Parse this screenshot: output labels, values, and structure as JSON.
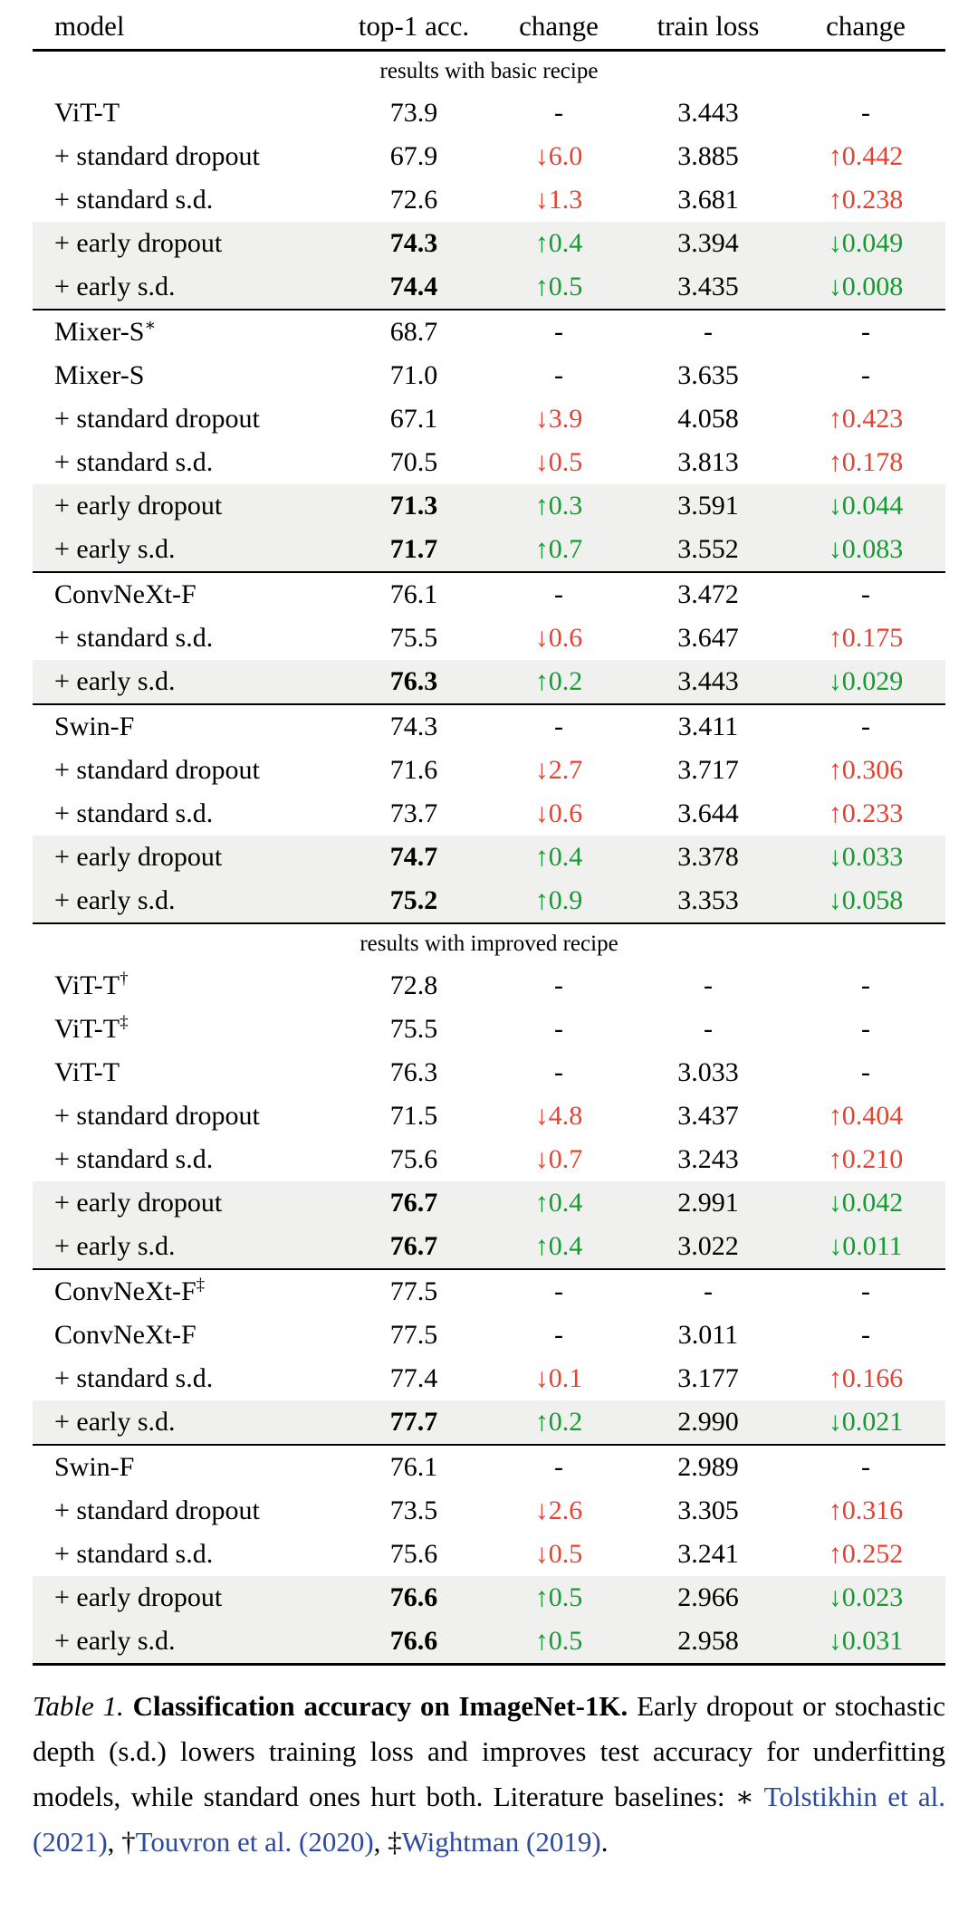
{
  "colors": {
    "negative": "#e8412f",
    "positive": "#109e2f",
    "citation_link": "#2c4aa0",
    "row_highlight": "#f0f0ee",
    "rule": "#000000"
  },
  "table": {
    "columns": [
      "model",
      "top-1 acc.",
      "change",
      "train loss",
      "change"
    ],
    "sections": [
      {
        "label": "results with basic recipe",
        "groups": [
          [
            {
              "model": "ViT-T",
              "sup": "",
              "acc": "73.9",
              "bold": false,
              "dacc": "-",
              "dacc_tone": "",
              "loss": "3.443",
              "dloss": "-",
              "dloss_tone": "",
              "shade": false
            },
            {
              "model": "+ standard dropout",
              "sup": "",
              "acc": "67.9",
              "bold": false,
              "dacc": "↓6.0",
              "dacc_tone": "bad",
              "loss": "3.885",
              "dloss": "↑0.442",
              "dloss_tone": "bad",
              "shade": false
            },
            {
              "model": "+ standard s.d.",
              "sup": "",
              "acc": "72.6",
              "bold": false,
              "dacc": "↓1.3",
              "dacc_tone": "bad",
              "loss": "3.681",
              "dloss": "↑0.238",
              "dloss_tone": "bad",
              "shade": false
            },
            {
              "model": "+ early dropout",
              "sup": "",
              "acc": "74.3",
              "bold": true,
              "dacc": "↑0.4",
              "dacc_tone": "good",
              "loss": "3.394",
              "dloss": "↓0.049",
              "dloss_tone": "good",
              "shade": true
            },
            {
              "model": "+ early s.d.",
              "sup": "",
              "acc": "74.4",
              "bold": true,
              "dacc": "↑0.5",
              "dacc_tone": "good",
              "loss": "3.435",
              "dloss": "↓0.008",
              "dloss_tone": "good",
              "shade": true
            }
          ],
          [
            {
              "model": "Mixer-S",
              "sup": "∗",
              "acc": "68.7",
              "bold": false,
              "dacc": "-",
              "dacc_tone": "",
              "loss": "-",
              "dloss": "-",
              "dloss_tone": "",
              "shade": false
            },
            {
              "model": "Mixer-S",
              "sup": "",
              "acc": "71.0",
              "bold": false,
              "dacc": "-",
              "dacc_tone": "",
              "loss": "3.635",
              "dloss": "-",
              "dloss_tone": "",
              "shade": false
            },
            {
              "model": "+ standard dropout",
              "sup": "",
              "acc": "67.1",
              "bold": false,
              "dacc": "↓3.9",
              "dacc_tone": "bad",
              "loss": "4.058",
              "dloss": "↑0.423",
              "dloss_tone": "bad",
              "shade": false
            },
            {
              "model": "+ standard s.d.",
              "sup": "",
              "acc": "70.5",
              "bold": false,
              "dacc": "↓0.5",
              "dacc_tone": "bad",
              "loss": "3.813",
              "dloss": "↑0.178",
              "dloss_tone": "bad",
              "shade": false
            },
            {
              "model": "+ early dropout",
              "sup": "",
              "acc": "71.3",
              "bold": true,
              "dacc": "↑0.3",
              "dacc_tone": "good",
              "loss": "3.591",
              "dloss": "↓0.044",
              "dloss_tone": "good",
              "shade": true
            },
            {
              "model": "+ early s.d.",
              "sup": "",
              "acc": "71.7",
              "bold": true,
              "dacc": "↑0.7",
              "dacc_tone": "good",
              "loss": "3.552",
              "dloss": "↓0.083",
              "dloss_tone": "good",
              "shade": true
            }
          ],
          [
            {
              "model": "ConvNeXt-F",
              "sup": "",
              "acc": "76.1",
              "bold": false,
              "dacc": "-",
              "dacc_tone": "",
              "loss": "3.472",
              "dloss": "-",
              "dloss_tone": "",
              "shade": false
            },
            {
              "model": "+ standard s.d.",
              "sup": "",
              "acc": "75.5",
              "bold": false,
              "dacc": "↓0.6",
              "dacc_tone": "bad",
              "loss": "3.647",
              "dloss": "↑0.175",
              "dloss_tone": "bad",
              "shade": false
            },
            {
              "model": "+ early s.d.",
              "sup": "",
              "acc": "76.3",
              "bold": true,
              "dacc": "↑0.2",
              "dacc_tone": "good",
              "loss": "3.443",
              "dloss": "↓0.029",
              "dloss_tone": "good",
              "shade": true
            }
          ],
          [
            {
              "model": "Swin-F",
              "sup": "",
              "acc": "74.3",
              "bold": false,
              "dacc": "-",
              "dacc_tone": "",
              "loss": "3.411",
              "dloss": "-",
              "dloss_tone": "",
              "shade": false
            },
            {
              "model": "+ standard dropout",
              "sup": "",
              "acc": "71.6",
              "bold": false,
              "dacc": "↓2.7",
              "dacc_tone": "bad",
              "loss": "3.717",
              "dloss": "↑0.306",
              "dloss_tone": "bad",
              "shade": false
            },
            {
              "model": "+ standard s.d.",
              "sup": "",
              "acc": "73.7",
              "bold": false,
              "dacc": "↓0.6",
              "dacc_tone": "bad",
              "loss": "3.644",
              "dloss": "↑0.233",
              "dloss_tone": "bad",
              "shade": false
            },
            {
              "model": "+ early dropout",
              "sup": "",
              "acc": "74.7",
              "bold": true,
              "dacc": "↑0.4",
              "dacc_tone": "good",
              "loss": "3.378",
              "dloss": "↓0.033",
              "dloss_tone": "good",
              "shade": true
            },
            {
              "model": "+ early s.d.",
              "sup": "",
              "acc": "75.2",
              "bold": true,
              "dacc": "↑0.9",
              "dacc_tone": "good",
              "loss": "3.353",
              "dloss": "↓0.058",
              "dloss_tone": "good",
              "shade": true
            }
          ]
        ]
      },
      {
        "label": "results with improved recipe",
        "groups": [
          [
            {
              "model": "ViT-T",
              "sup": "†",
              "acc": "72.8",
              "bold": false,
              "dacc": "-",
              "dacc_tone": "",
              "loss": "-",
              "dloss": "-",
              "dloss_tone": "",
              "shade": false
            },
            {
              "model": "ViT-T",
              "sup": "‡",
              "acc": "75.5",
              "bold": false,
              "dacc": "-",
              "dacc_tone": "",
              "loss": "-",
              "dloss": "-",
              "dloss_tone": "",
              "shade": false
            },
            {
              "model": "ViT-T",
              "sup": "",
              "acc": "76.3",
              "bold": false,
              "dacc": "-",
              "dacc_tone": "",
              "loss": "3.033",
              "dloss": "-",
              "dloss_tone": "",
              "shade": false
            },
            {
              "model": "+ standard dropout",
              "sup": "",
              "acc": "71.5",
              "bold": false,
              "dacc": "↓4.8",
              "dacc_tone": "bad",
              "loss": "3.437",
              "dloss": "↑0.404",
              "dloss_tone": "bad",
              "shade": false
            },
            {
              "model": "+ standard s.d.",
              "sup": "",
              "acc": "75.6",
              "bold": false,
              "dacc": "↓0.7",
              "dacc_tone": "bad",
              "loss": "3.243",
              "dloss": "↑0.210",
              "dloss_tone": "bad",
              "shade": false
            },
            {
              "model": "+ early dropout",
              "sup": "",
              "acc": "76.7",
              "bold": true,
              "dacc": "↑0.4",
              "dacc_tone": "good",
              "loss": "2.991",
              "dloss": "↓0.042",
              "dloss_tone": "good",
              "shade": true
            },
            {
              "model": "+ early s.d.",
              "sup": "",
              "acc": "76.7",
              "bold": true,
              "dacc": "↑0.4",
              "dacc_tone": "good",
              "loss": "3.022",
              "dloss": "↓0.011",
              "dloss_tone": "good",
              "shade": true
            }
          ],
          [
            {
              "model": "ConvNeXt-F",
              "sup": "‡",
              "acc": "77.5",
              "bold": false,
              "dacc": "-",
              "dacc_tone": "",
              "loss": "-",
              "dloss": "-",
              "dloss_tone": "",
              "shade": false
            },
            {
              "model": "ConvNeXt-F",
              "sup": "",
              "acc": "77.5",
              "bold": false,
              "dacc": "-",
              "dacc_tone": "",
              "loss": "3.011",
              "dloss": "-",
              "dloss_tone": "",
              "shade": false
            },
            {
              "model": "+ standard s.d.",
              "sup": "",
              "acc": "77.4",
              "bold": false,
              "dacc": "↓0.1",
              "dacc_tone": "bad",
              "loss": "3.177",
              "dloss": "↑0.166",
              "dloss_tone": "bad",
              "shade": false
            },
            {
              "model": "+ early s.d.",
              "sup": "",
              "acc": "77.7",
              "bold": true,
              "dacc": "↑0.2",
              "dacc_tone": "good",
              "loss": "2.990",
              "dloss": "↓0.021",
              "dloss_tone": "good",
              "shade": true
            }
          ],
          [
            {
              "model": "Swin-F",
              "sup": "",
              "acc": "76.1",
              "bold": false,
              "dacc": "-",
              "dacc_tone": "",
              "loss": "2.989",
              "dloss": "-",
              "dloss_tone": "",
              "shade": false
            },
            {
              "model": "+ standard dropout",
              "sup": "",
              "acc": "73.5",
              "bold": false,
              "dacc": "↓2.6",
              "dacc_tone": "bad",
              "loss": "3.305",
              "dloss": "↑0.316",
              "dloss_tone": "bad",
              "shade": false
            },
            {
              "model": "+ standard s.d.",
              "sup": "",
              "acc": "75.6",
              "bold": false,
              "dacc": "↓0.5",
              "dacc_tone": "bad",
              "loss": "3.241",
              "dloss": "↑0.252",
              "dloss_tone": "bad",
              "shade": false
            },
            {
              "model": "+ early dropout",
              "sup": "",
              "acc": "76.6",
              "bold": true,
              "dacc": "↑0.5",
              "dacc_tone": "good",
              "loss": "2.966",
              "dloss": "↓0.023",
              "dloss_tone": "good",
              "shade": true
            },
            {
              "model": "+ early s.d.",
              "sup": "",
              "acc": "76.6",
              "bold": true,
              "dacc": "↑0.5",
              "dacc_tone": "good",
              "loss": "2.958",
              "dloss": "↓0.031",
              "dloss_tone": "good",
              "shade": true
            }
          ]
        ]
      }
    ]
  },
  "caption": {
    "parts": [
      {
        "text": "Table 1.",
        "style": "italic"
      },
      {
        "text": " ",
        "style": "normal"
      },
      {
        "text": "Classification accuracy on ImageNet-1K.",
        "style": "bold"
      },
      {
        "text": " Early dropout or stochastic depth (s.d.) lowers training loss and improves test accuracy for underfitting models, while standard ones hurt both. Literature baselines: ∗ ",
        "style": "normal"
      },
      {
        "text": "Tolstikhin et al.",
        "style": "link"
      },
      {
        "text": " ",
        "style": "normal"
      },
      {
        "text": "(2021)",
        "style": "link"
      },
      {
        "text": ", †",
        "style": "normal"
      },
      {
        "text": "Touvron et al.",
        "style": "link"
      },
      {
        "text": " ",
        "style": "normal"
      },
      {
        "text": "(2020)",
        "style": "link"
      },
      {
        "text": ", ‡",
        "style": "normal"
      },
      {
        "text": "Wightman",
        "style": "link"
      },
      {
        "text": " ",
        "style": "normal"
      },
      {
        "text": "(2019)",
        "style": "link"
      },
      {
        "text": ".",
        "style": "normal"
      }
    ]
  }
}
